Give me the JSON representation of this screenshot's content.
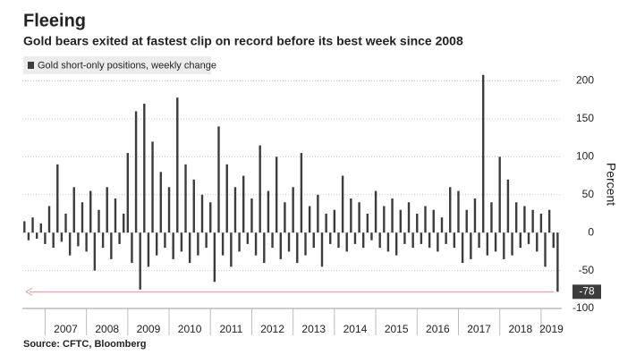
{
  "chart_data": {
    "type": "bar",
    "title": "Fleeing",
    "subtitle": "Gold bears exited at fastest clip on record before its best week since 2008",
    "legend": "Gold short-only positions, weekly change",
    "ylabel": "Percent",
    "source": "Source: CFTC, Bloomberg",
    "color": "#3c3c3c",
    "grid": true,
    "x": [
      2006.5,
      2006.6,
      2006.7,
      2006.8,
      2006.9,
      2007.0,
      2007.1,
      2007.2,
      2007.3,
      2007.4,
      2007.5,
      2007.6,
      2007.7,
      2007.8,
      2007.9,
      2008.0,
      2008.1,
      2008.2,
      2008.3,
      2008.4,
      2008.5,
      2008.6,
      2008.7,
      2008.8,
      2008.9,
      2009.0,
      2009.1,
      2009.2,
      2009.3,
      2009.4,
      2009.5,
      2009.6,
      2009.7,
      2009.8,
      2009.9,
      2010.0,
      2010.1,
      2010.2,
      2010.3,
      2010.4,
      2010.5,
      2010.6,
      2010.7,
      2010.8,
      2010.9,
      2011.0,
      2011.1,
      2011.2,
      2011.3,
      2011.4,
      2011.5,
      2011.6,
      2011.7,
      2011.8,
      2011.9,
      2012.0,
      2012.1,
      2012.2,
      2012.3,
      2012.4,
      2012.5,
      2012.6,
      2012.7,
      2012.8,
      2012.9,
      2013.0,
      2013.1,
      2013.2,
      2013.3,
      2013.4,
      2013.5,
      2013.6,
      2013.7,
      2013.8,
      2013.9,
      2014.0,
      2014.1,
      2014.2,
      2014.3,
      2014.4,
      2014.5,
      2014.6,
      2014.7,
      2014.8,
      2014.9,
      2015.0,
      2015.1,
      2015.2,
      2015.3,
      2015.4,
      2015.5,
      2015.6,
      2015.7,
      2015.8,
      2015.9,
      2016.0,
      2016.1,
      2016.2,
      2016.3,
      2016.4,
      2016.5,
      2016.6,
      2016.7,
      2016.8,
      2016.9,
      2017.0,
      2017.1,
      2017.2,
      2017.3,
      2017.4,
      2017.5,
      2017.6,
      2017.7,
      2017.8,
      2017.9,
      2018.0,
      2018.1,
      2018.2,
      2018.3,
      2018.4,
      2018.5,
      2018.6,
      2018.7,
      2018.8,
      2018.9,
      2019.0,
      2019.1,
      2019.2,
      2019.3,
      2019.4
    ],
    "values": [
      15,
      -10,
      20,
      -8,
      12,
      -15,
      35,
      -20,
      90,
      -12,
      25,
      -30,
      60,
      -18,
      40,
      -25,
      55,
      -50,
      30,
      -20,
      60,
      -35,
      45,
      -15,
      25,
      105,
      -40,
      160,
      -75,
      170,
      -45,
      120,
      -30,
      80,
      -20,
      60,
      -35,
      178,
      -25,
      90,
      -40,
      70,
      -30,
      50,
      -20,
      40,
      -65,
      140,
      -30,
      90,
      -45,
      60,
      -25,
      75,
      -15,
      45,
      -30,
      115,
      -40,
      55,
      -20,
      100,
      -35,
      40,
      -25,
      60,
      -40,
      105,
      -30,
      35,
      -20,
      50,
      -45,
      25,
      -15,
      30,
      -20,
      75,
      -25,
      45,
      -15,
      40,
      -20,
      25,
      -10,
      55,
      -20,
      35,
      -25,
      45,
      -30,
      30,
      -15,
      40,
      -20,
      25,
      -15,
      35,
      -20,
      30,
      -25,
      20,
      -15,
      60,
      -20,
      55,
      -40,
      30,
      -35,
      45,
      -20,
      208,
      -30,
      40,
      -25,
      100,
      -35,
      70,
      -30,
      40,
      -20,
      35,
      -15,
      30,
      -25,
      25,
      -45,
      30,
      -20,
      -78
    ],
    "xlim": [
      2006.45,
      2019.5
    ],
    "xticks": [
      2007,
      2008,
      2009,
      2010,
      2011,
      2012,
      2013,
      2014,
      2015,
      2016,
      2017,
      2018,
      2019
    ],
    "ylim": [
      -100,
      236
    ],
    "yticks": [
      -100,
      -50,
      0,
      50,
      100,
      150,
      200
    ]
  }
}
